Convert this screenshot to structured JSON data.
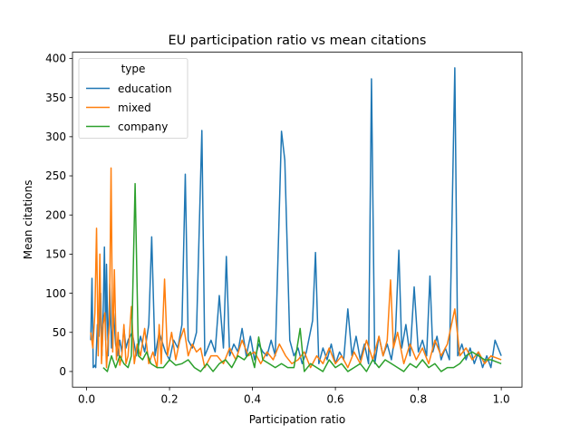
{
  "chart_data": {
    "type": "line",
    "title": "EU participation ratio vs mean citations",
    "xlabel": "Participation ratio",
    "ylabel": "Mean citations",
    "xlim": [
      -0.034,
      1.05
    ],
    "ylim": [
      -20,
      408
    ],
    "xticks": [
      0.0,
      0.2,
      0.4,
      0.6,
      0.8,
      1.0
    ],
    "xtick_labels": [
      "0.0",
      "0.2",
      "0.4",
      "0.6",
      "0.8",
      "1.0"
    ],
    "yticks": [
      0,
      50,
      100,
      150,
      200,
      250,
      300,
      350,
      400
    ],
    "ytick_labels": [
      "0",
      "50",
      "100",
      "150",
      "200",
      "250",
      "300",
      "350",
      "400"
    ],
    "grid": false,
    "legend": {
      "title": "type",
      "placement": "top-left"
    },
    "series": [
      {
        "name": "education",
        "color": "#1f77b4",
        "points": [
          [
            0.01,
            40
          ],
          [
            0.013,
            119
          ],
          [
            0.016,
            5
          ],
          [
            0.02,
            8
          ],
          [
            0.022,
            5
          ],
          [
            0.026,
            60
          ],
          [
            0.03,
            45
          ],
          [
            0.034,
            100
          ],
          [
            0.037,
            20
          ],
          [
            0.04,
            75
          ],
          [
            0.043,
            159
          ],
          [
            0.046,
            40
          ],
          [
            0.048,
            137
          ],
          [
            0.052,
            20
          ],
          [
            0.056,
            112
          ],
          [
            0.06,
            30
          ],
          [
            0.065,
            75
          ],
          [
            0.07,
            35
          ],
          [
            0.075,
            20
          ],
          [
            0.08,
            40
          ],
          [
            0.085,
            25
          ],
          [
            0.09,
            55
          ],
          [
            0.095,
            30
          ],
          [
            0.1,
            40
          ],
          [
            0.11,
            50
          ],
          [
            0.12,
            20
          ],
          [
            0.13,
            45
          ],
          [
            0.14,
            25
          ],
          [
            0.15,
            60
          ],
          [
            0.157,
            172
          ],
          [
            0.165,
            20
          ],
          [
            0.175,
            50
          ],
          [
            0.19,
            25
          ],
          [
            0.2,
            15
          ],
          [
            0.21,
            40
          ],
          [
            0.22,
            30
          ],
          [
            0.23,
            60
          ],
          [
            0.238,
            252
          ],
          [
            0.245,
            40
          ],
          [
            0.255,
            30
          ],
          [
            0.265,
            50
          ],
          [
            0.278,
            308
          ],
          [
            0.285,
            20
          ],
          [
            0.3,
            40
          ],
          [
            0.31,
            25
          ],
          [
            0.32,
            97
          ],
          [
            0.33,
            30
          ],
          [
            0.337,
            147
          ],
          [
            0.345,
            20
          ],
          [
            0.355,
            35
          ],
          [
            0.365,
            25
          ],
          [
            0.375,
            55
          ],
          [
            0.385,
            20
          ],
          [
            0.395,
            45
          ],
          [
            0.405,
            15
          ],
          [
            0.415,
            35
          ],
          [
            0.425,
            25
          ],
          [
            0.435,
            20
          ],
          [
            0.445,
            40
          ],
          [
            0.455,
            20
          ],
          [
            0.47,
            307
          ],
          [
            0.478,
            270
          ],
          [
            0.49,
            40
          ],
          [
            0.5,
            20
          ],
          [
            0.51,
            30
          ],
          [
            0.52,
            10
          ],
          [
            0.53,
            25
          ],
          [
            0.545,
            65
          ],
          [
            0.552,
            152
          ],
          [
            0.56,
            10
          ],
          [
            0.57,
            30
          ],
          [
            0.58,
            15
          ],
          [
            0.59,
            35
          ],
          [
            0.6,
            10
          ],
          [
            0.61,
            25
          ],
          [
            0.62,
            15
          ],
          [
            0.63,
            80
          ],
          [
            0.64,
            20
          ],
          [
            0.65,
            45
          ],
          [
            0.66,
            15
          ],
          [
            0.67,
            35
          ],
          [
            0.68,
            10
          ],
          [
            0.687,
            374
          ],
          [
            0.695,
            10
          ],
          [
            0.705,
            45
          ],
          [
            0.715,
            20
          ],
          [
            0.725,
            35
          ],
          [
            0.735,
            15
          ],
          [
            0.745,
            50
          ],
          [
            0.753,
            155
          ],
          [
            0.76,
            30
          ],
          [
            0.77,
            60
          ],
          [
            0.78,
            20
          ],
          [
            0.79,
            108
          ],
          [
            0.8,
            25
          ],
          [
            0.81,
            40
          ],
          [
            0.82,
            20
          ],
          [
            0.828,
            122
          ],
          [
            0.835,
            25
          ],
          [
            0.845,
            45
          ],
          [
            0.855,
            15
          ],
          [
            0.865,
            30
          ],
          [
            0.875,
            15
          ],
          [
            0.888,
            388
          ],
          [
            0.895,
            20
          ],
          [
            0.905,
            35
          ],
          [
            0.915,
            15
          ],
          [
            0.925,
            30
          ],
          [
            0.935,
            10
          ],
          [
            0.945,
            25
          ],
          [
            0.955,
            5
          ],
          [
            0.965,
            20
          ],
          [
            0.975,
            5
          ],
          [
            0.985,
            40
          ],
          [
            1.0,
            20
          ]
        ]
      },
      {
        "name": "mixed",
        "color": "#ff7f0e",
        "points": [
          [
            0.01,
            50
          ],
          [
            0.015,
            30
          ],
          [
            0.02,
            75
          ],
          [
            0.024,
            183
          ],
          [
            0.028,
            20
          ],
          [
            0.032,
            150
          ],
          [
            0.036,
            10
          ],
          [
            0.04,
            60
          ],
          [
            0.044,
            75
          ],
          [
            0.048,
            5
          ],
          [
            0.052,
            40
          ],
          [
            0.055,
            60
          ],
          [
            0.059,
            260
          ],
          [
            0.063,
            25
          ],
          [
            0.067,
            130
          ],
          [
            0.072,
            15
          ],
          [
            0.076,
            50
          ],
          [
            0.08,
            8
          ],
          [
            0.085,
            20
          ],
          [
            0.09,
            60
          ],
          [
            0.095,
            10
          ],
          [
            0.1,
            20
          ],
          [
            0.108,
            83
          ],
          [
            0.115,
            10
          ],
          [
            0.122,
            35
          ],
          [
            0.13,
            20
          ],
          [
            0.14,
            55
          ],
          [
            0.15,
            10
          ],
          [
            0.16,
            25
          ],
          [
            0.17,
            5
          ],
          [
            0.175,
            60
          ],
          [
            0.18,
            10
          ],
          [
            0.188,
            118
          ],
          [
            0.195,
            20
          ],
          [
            0.205,
            50
          ],
          [
            0.215,
            15
          ],
          [
            0.225,
            40
          ],
          [
            0.235,
            55
          ],
          [
            0.245,
            20
          ],
          [
            0.255,
            35
          ],
          [
            0.265,
            25
          ],
          [
            0.275,
            30
          ],
          [
            0.285,
            5
          ],
          [
            0.3,
            20
          ],
          [
            0.315,
            20
          ],
          [
            0.33,
            10
          ],
          [
            0.345,
            30
          ],
          [
            0.36,
            15
          ],
          [
            0.375,
            40
          ],
          [
            0.39,
            20
          ],
          [
            0.405,
            25
          ],
          [
            0.42,
            10
          ],
          [
            0.435,
            25
          ],
          [
            0.45,
            15
          ],
          [
            0.465,
            35
          ],
          [
            0.48,
            20
          ],
          [
            0.495,
            10
          ],
          [
            0.51,
            15
          ],
          [
            0.525,
            25
          ],
          [
            0.54,
            5
          ],
          [
            0.555,
            20
          ],
          [
            0.57,
            10
          ],
          [
            0.585,
            30
          ],
          [
            0.6,
            10
          ],
          [
            0.615,
            20
          ],
          [
            0.63,
            5
          ],
          [
            0.645,
            25
          ],
          [
            0.66,
            10
          ],
          [
            0.675,
            40
          ],
          [
            0.69,
            15
          ],
          [
            0.705,
            45
          ],
          [
            0.715,
            20
          ],
          [
            0.725,
            40
          ],
          [
            0.733,
            117
          ],
          [
            0.74,
            30
          ],
          [
            0.75,
            50
          ],
          [
            0.765,
            10
          ],
          [
            0.78,
            35
          ],
          [
            0.795,
            15
          ],
          [
            0.81,
            30
          ],
          [
            0.825,
            10
          ],
          [
            0.84,
            40
          ],
          [
            0.855,
            20
          ],
          [
            0.87,
            35
          ],
          [
            0.888,
            80
          ],
          [
            0.9,
            20
          ],
          [
            0.915,
            30
          ],
          [
            0.93,
            15
          ],
          [
            0.945,
            25
          ],
          [
            0.96,
            10
          ],
          [
            0.975,
            20
          ],
          [
            1.0,
            15
          ]
        ]
      },
      {
        "name": "company",
        "color": "#2ca02c",
        "points": [
          [
            0.04,
            5
          ],
          [
            0.05,
            0
          ],
          [
            0.06,
            20
          ],
          [
            0.07,
            5
          ],
          [
            0.08,
            20
          ],
          [
            0.09,
            10
          ],
          [
            0.1,
            5
          ],
          [
            0.108,
            20
          ],
          [
            0.117,
            240
          ],
          [
            0.125,
            20
          ],
          [
            0.135,
            15
          ],
          [
            0.145,
            25
          ],
          [
            0.155,
            10
          ],
          [
            0.17,
            5
          ],
          [
            0.185,
            5
          ],
          [
            0.2,
            15
          ],
          [
            0.215,
            8
          ],
          [
            0.23,
            10
          ],
          [
            0.245,
            15
          ],
          [
            0.26,
            5
          ],
          [
            0.275,
            0
          ],
          [
            0.29,
            10
          ],
          [
            0.305,
            0
          ],
          [
            0.32,
            10
          ],
          [
            0.335,
            15
          ],
          [
            0.35,
            5
          ],
          [
            0.365,
            20
          ],
          [
            0.38,
            15
          ],
          [
            0.395,
            25
          ],
          [
            0.405,
            5
          ],
          [
            0.415,
            44
          ],
          [
            0.425,
            15
          ],
          [
            0.44,
            10
          ],
          [
            0.455,
            5
          ],
          [
            0.47,
            10
          ],
          [
            0.485,
            5
          ],
          [
            0.5,
            5
          ],
          [
            0.515,
            55
          ],
          [
            0.525,
            0
          ],
          [
            0.54,
            10
          ],
          [
            0.555,
            5
          ],
          [
            0.57,
            0
          ],
          [
            0.585,
            15
          ],
          [
            0.6,
            5
          ],
          [
            0.615,
            10
          ],
          [
            0.63,
            0
          ],
          [
            0.645,
            5
          ],
          [
            0.66,
            10
          ],
          [
            0.675,
            0
          ],
          [
            0.69,
            15
          ],
          [
            0.705,
            5
          ],
          [
            0.72,
            15
          ],
          [
            0.735,
            10
          ],
          [
            0.75,
            5
          ],
          [
            0.765,
            0
          ],
          [
            0.78,
            10
          ],
          [
            0.795,
            5
          ],
          [
            0.81,
            15
          ],
          [
            0.825,
            5
          ],
          [
            0.84,
            10
          ],
          [
            0.855,
            0
          ],
          [
            0.87,
            5
          ],
          [
            0.885,
            5
          ],
          [
            0.9,
            10
          ],
          [
            0.915,
            20
          ],
          [
            0.93,
            25
          ],
          [
            0.945,
            20
          ],
          [
            0.96,
            15
          ],
          [
            0.975,
            15
          ],
          [
            1.0,
            10
          ]
        ]
      }
    ]
  }
}
